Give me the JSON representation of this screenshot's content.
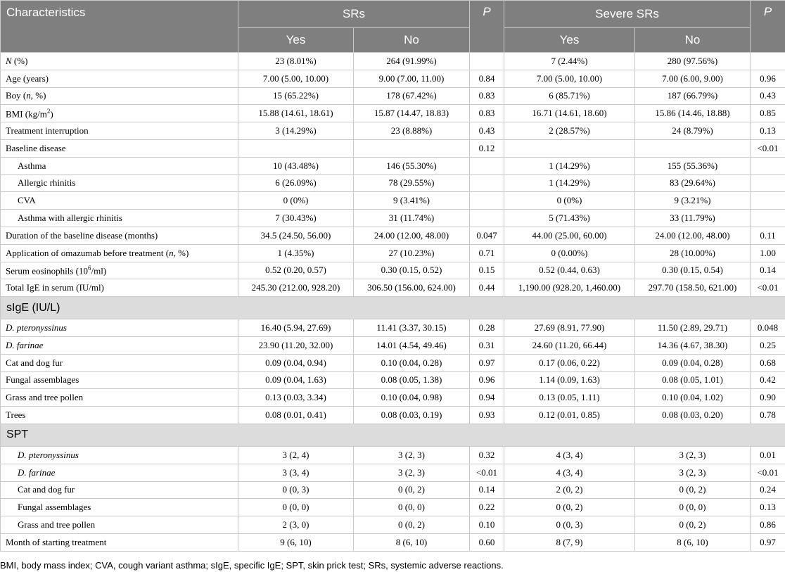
{
  "header": {
    "characteristics": "Characteristics",
    "srs": "SRs",
    "p1": "P",
    "severe_srs": "Severe SRs",
    "p2": "P",
    "yes1": "Yes",
    "no1": "No",
    "yes2": "Yes",
    "no2": "No"
  },
  "rows": [
    {
      "type": "row",
      "label": "N (%)",
      "label_italic_prefix": "N",
      "label_rest": " (%)",
      "sr_yes": "23 (8.01%)",
      "sr_no": "264 (91.99%)",
      "p1": "",
      "sev_yes": "7 (2.44%)",
      "sev_no": "280 (97.56%)",
      "p2": ""
    },
    {
      "type": "row",
      "label": "Age (years)",
      "sr_yes": "7.00 (5.00, 10.00)",
      "sr_no": "9.00 (7.00, 11.00)",
      "p1": "0.84",
      "sev_yes": "7.00 (5.00, 10.00)",
      "sev_no": "7.00 (6.00, 9.00)",
      "p2": "0.96"
    },
    {
      "type": "row",
      "label": "Boy (n, %)",
      "label_before": "Boy (",
      "label_italic": "n",
      "label_after": ", %)",
      "sr_yes": "15 (65.22%)",
      "sr_no": "178 (67.42%)",
      "p1": "0.83",
      "sev_yes": "6 (85.71%)",
      "sev_no": "187 (66.79%)",
      "p2": "0.43"
    },
    {
      "type": "row",
      "label": "BMI (kg/m2)",
      "label_before": "BMI (kg/m",
      "label_sup": "2",
      "label_after": ")",
      "sr_yes": "15.88 (14.61, 18.61)",
      "sr_no": "15.87 (14.47, 18.83)",
      "p1": "0.83",
      "sev_yes": "16.71 (14.61, 18.60)",
      "sev_no": "15.86 (14.46, 18.88)",
      "p2": "0.85"
    },
    {
      "type": "row",
      "label": "Treatment interruption",
      "sr_yes": "3 (14.29%)",
      "sr_no": "23 (8.88%)",
      "p1": "0.43",
      "sev_yes": "2 (28.57%)",
      "sev_no": "24 (8.79%)",
      "p2": "0.13"
    },
    {
      "type": "row",
      "label": "Baseline disease",
      "sr_yes": "",
      "sr_no": "",
      "p1": "0.12",
      "sev_yes": "",
      "sev_no": "",
      "p2": "<0.01"
    },
    {
      "type": "row",
      "sub": true,
      "label": "Asthma",
      "sr_yes": "10 (43.48%)",
      "sr_no": "146 (55.30%)",
      "p1": "",
      "sev_yes": "1 (14.29%)",
      "sev_no": "155 (55.36%)",
      "p2": ""
    },
    {
      "type": "row",
      "sub": true,
      "label": "Allergic rhinitis",
      "sr_yes": "6 (26.09%)",
      "sr_no": "78 (29.55%)",
      "p1": "",
      "sev_yes": "1 (14.29%)",
      "sev_no": "83 (29.64%)",
      "p2": ""
    },
    {
      "type": "row",
      "sub": true,
      "label": "CVA",
      "sr_yes": "0 (0%)",
      "sr_no": "9 (3.41%)",
      "p1": "",
      "sev_yes": "0 (0%)",
      "sev_no": "9 (3.21%)",
      "p2": ""
    },
    {
      "type": "row",
      "sub": true,
      "label": "Asthma with allergic rhinitis",
      "sr_yes": "7 (30.43%)",
      "sr_no": "31 (11.74%)",
      "p1": "",
      "sev_yes": "5 (71.43%)",
      "sev_no": "33 (11.79%)",
      "p2": ""
    },
    {
      "type": "row",
      "label": "Duration of the baseline disease (months)",
      "sr_yes": "34.5 (24.50, 56.00)",
      "sr_no": "24.00 (12.00, 48.00)",
      "p1": "0.047",
      "sev_yes": "44.00 (25.00, 60.00)",
      "sev_no": "24.00 (12.00, 48.00)",
      "p2": "0.11"
    },
    {
      "type": "row",
      "label": "Application of omazumab before treatment (n, %)",
      "label_before": "Application of omazumab before treatment (",
      "label_italic": "n",
      "label_after": ", %)",
      "sr_yes": "1 (4.35%)",
      "sr_no": "27 (10.23%)",
      "p1": "0.71",
      "sev_yes": "0 (0.00%)",
      "sev_no": "28 (10.00%)",
      "p2": "1.00"
    },
    {
      "type": "row",
      "label": "Serum eosinophils (106/ml)",
      "label_before": "Serum eosinophils (10",
      "label_sup": "6",
      "label_after": "/ml)",
      "sr_yes": "0.52 (0.20, 0.57)",
      "sr_no": "0.30 (0.15, 0.52)",
      "p1": "0.15",
      "sev_yes": "0.52 (0.44, 0.63)",
      "sev_no": "0.30 (0.15, 0.54)",
      "p2": "0.14"
    },
    {
      "type": "row",
      "label": "Total IgE in serum (IU/ml)",
      "sr_yes": "245.30 (212.00, 928.20)",
      "sr_no": "306.50 (156.00, 624.00)",
      "p1": "0.44",
      "sev_yes": "1,190.00 (928.20, 1,460.00)",
      "sev_no": "297.70 (158.50, 621.00)",
      "p2": "<0.01"
    },
    {
      "type": "section",
      "label": "sIgE (IU/L)"
    },
    {
      "type": "row",
      "italic": true,
      "label": "D. pteronyssinus",
      "sr_yes": "16.40 (5.94, 27.69)",
      "sr_no": "11.41 (3.37, 30.15)",
      "p1": "0.28",
      "sev_yes": "27.69 (8.91, 77.90)",
      "sev_no": "11.50 (2.89, 29.71)",
      "p2": "0.048"
    },
    {
      "type": "row",
      "italic": true,
      "label": "D. farinae",
      "sr_yes": "23.90 (11.20, 32.00)",
      "sr_no": "14.01 (4.54, 49.46)",
      "p1": "0.31",
      "sev_yes": "24.60 (11.20, 66.44)",
      "sev_no": "14.36 (4.67, 38.30)",
      "p2": "0.25"
    },
    {
      "type": "row",
      "label": "Cat and dog fur",
      "sr_yes": "0.09 (0.04, 0.94)",
      "sr_no": "0.10 (0.04, 0.28)",
      "p1": "0.97",
      "sev_yes": "0.17 (0.06, 0.22)",
      "sev_no": "0.09 (0.04, 0.28)",
      "p2": "0.68"
    },
    {
      "type": "row",
      "label": "Fungal assemblages",
      "sr_yes": "0.09 (0.04, 1.63)",
      "sr_no": "0.08 (0.05, 1.38)",
      "p1": "0.96",
      "sev_yes": "1.14 (0.09, 1.63)",
      "sev_no": "0.08 (0.05, 1.01)",
      "p2": "0.42"
    },
    {
      "type": "row",
      "label": "Grass and tree pollen",
      "sr_yes": "0.13 (0.03, 3.34)",
      "sr_no": "0.10 (0.04, 0.98)",
      "p1": "0.94",
      "sev_yes": "0.13 (0.05, 1.11)",
      "sev_no": "0.10 (0.04, 1.02)",
      "p2": "0.90"
    },
    {
      "type": "row",
      "label": "Trees",
      "sr_yes": "0.08 (0.01, 0.41)",
      "sr_no": "0.08 (0.03, 0.19)",
      "p1": "0.93",
      "sev_yes": "0.12 (0.01, 0.85)",
      "sev_no": "0.08 (0.03, 0.20)",
      "p2": "0.78"
    },
    {
      "type": "section",
      "label": "SPT"
    },
    {
      "type": "row",
      "sub": true,
      "italic": true,
      "label": "D. pteronyssinus",
      "sr_yes": "3 (2, 4)",
      "sr_no": "3 (2, 3)",
      "p1": "0.32",
      "sev_yes": "4 (3, 4)",
      "sev_no": "3 (2, 3)",
      "p2": "0.01"
    },
    {
      "type": "row",
      "sub": true,
      "italic": true,
      "label": "D. farinae",
      "sr_yes": "3 (3, 4)",
      "sr_no": "3 (2, 3)",
      "p1": "<0.01",
      "sev_yes": "4 (3, 4)",
      "sev_no": "3 (2, 3)",
      "p2": "<0.01"
    },
    {
      "type": "row",
      "sub": true,
      "label": "Cat and dog fur",
      "sr_yes": "0 (0, 3)",
      "sr_no": "0 (0, 2)",
      "p1": "0.14",
      "sev_yes": "2 (0, 2)",
      "sev_no": "0 (0, 2)",
      "p2": "0.24"
    },
    {
      "type": "row",
      "sub": true,
      "label": "Fungal assemblages",
      "sr_yes": "0 (0, 0)",
      "sr_no": "0 (0, 0)",
      "p1": "0.22",
      "sev_yes": "0 (0, 2)",
      "sev_no": "0 (0, 0)",
      "p2": "0.13"
    },
    {
      "type": "row",
      "sub": true,
      "label": "Grass and tree pollen",
      "sr_yes": "2 (3, 0)",
      "sr_no": "0 (0, 2)",
      "p1": "0.10",
      "sev_yes": "0 (0, 3)",
      "sev_no": "0 (0, 2)",
      "p2": "0.86"
    },
    {
      "type": "row",
      "label": "Month of starting treatment",
      "sr_yes": "9 (6, 10)",
      "sr_no": "8 (6, 10)",
      "p1": "0.60",
      "sev_yes": "8 (7, 9)",
      "sev_no": "8 (6, 10)",
      "p2": "0.97"
    }
  ],
  "footnote": "BMI, body mass index; CVA, cough variant asthma; sIgE, specific IgE; SPT, skin prick test; SRs, systemic adverse reactions."
}
